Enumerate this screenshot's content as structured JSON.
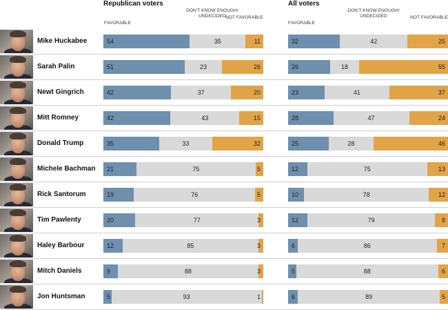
{
  "headers": {
    "republican_title": "Republican voters",
    "all_title": "All voters",
    "favorable": "FAVORABLE",
    "dont_know": "DON'T KNOW ENOUGH/ UNDECIDED",
    "not_favorable": "NOT FAVORABLE"
  },
  "colors": {
    "favorable": "#6e8fad",
    "dont_know": "#d9d9d9",
    "not_favorable": "#e2a447"
  },
  "chart_data": [
    {
      "type": "bar",
      "stacked": true,
      "orientation": "horizontal",
      "title": "Republican voters",
      "categories": [
        "Mike Huckabee",
        "Sarah Palin",
        "Newt Gingrich",
        "Mitt Romney",
        "Donald Trump",
        "Michele Bachman",
        "Rick Santorum",
        "Tim Pawlenty",
        "Haley Barbour",
        "Mitch Daniels",
        "Jon Huntsman"
      ],
      "series": [
        {
          "name": "FAVORABLE",
          "values": [
            54,
            51,
            42,
            42,
            35,
            21,
            19,
            20,
            12,
            9,
            5
          ]
        },
        {
          "name": "DON'T KNOW ENOUGH/ UNDECIDED",
          "values": [
            35,
            23,
            37,
            43,
            33,
            75,
            76,
            77,
            85,
            88,
            93
          ]
        },
        {
          "name": "NOT FAVORABLE",
          "values": [
            11,
            26,
            20,
            15,
            32,
            5,
            5,
            3,
            3,
            3,
            1
          ]
        }
      ]
    },
    {
      "type": "bar",
      "stacked": true,
      "orientation": "horizontal",
      "title": "All voters",
      "categories": [
        "Mike Huckabee",
        "Sarah Palin",
        "Newt Gingrich",
        "Mitt Romney",
        "Donald Trump",
        "Michele Bachman",
        "Rick Santorum",
        "Tim Pawlenty",
        "Haley Barbour",
        "Mitch Daniels",
        "Jon Huntsman"
      ],
      "series": [
        {
          "name": "FAVORABLE",
          "values": [
            32,
            26,
            23,
            28,
            25,
            12,
            10,
            12,
            6,
            5,
            6
          ]
        },
        {
          "name": "DON'T KNOW ENOUGH/ UNDECIDED",
          "values": [
            42,
            18,
            41,
            47,
            28,
            75,
            78,
            79,
            86,
            88,
            89
          ]
        },
        {
          "name": "NOT FAVORABLE",
          "values": [
            25,
            55,
            37,
            24,
            46,
            13,
            12,
            8,
            7,
            6,
            5
          ]
        }
      ]
    }
  ]
}
